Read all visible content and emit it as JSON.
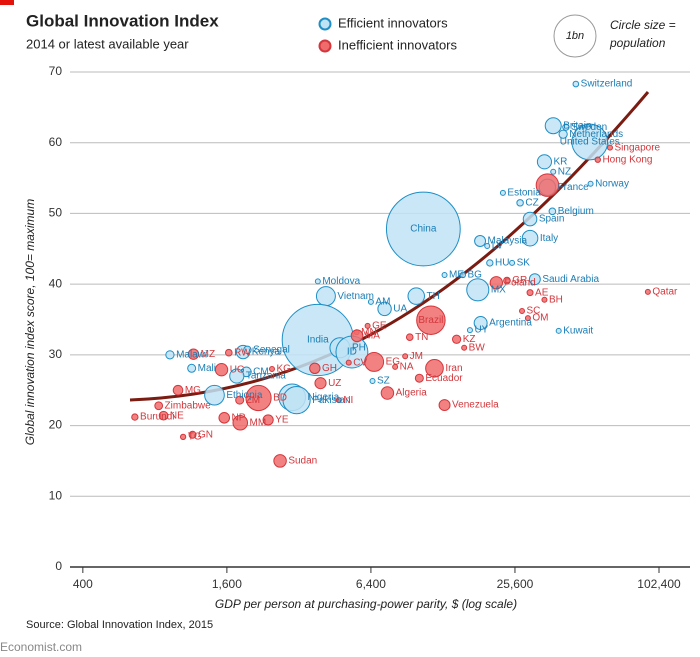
{
  "chart_data": {
    "type": "bubble",
    "title": "Global Innovation Index",
    "subtitle": "2014 or latest available year",
    "size_legend_label": "1bn",
    "size_legend_text": [
      "Circle size =",
      "population"
    ],
    "x_label": "GDP per person at purchasing-power parity, $ (log scale)",
    "y_label": "Global innovation index score, 100= maximum",
    "source": "Source: Global Innovation Index, 2015",
    "credit": "Economist.com",
    "x_log": true,
    "grid": true,
    "xlim": [
      270,
      138000
    ],
    "ylim": [
      0,
      70
    ],
    "xticks": [
      400,
      {
        "value": 1600,
        "label": "1,600"
      },
      {
        "value": 6400,
        "label": "6,400"
      },
      {
        "value": 25600,
        "label": "25,600"
      },
      {
        "value": 102400,
        "label": "102,400"
      }
    ],
    "yticks": [
      0,
      10,
      20,
      30,
      40,
      50,
      60,
      70
    ],
    "series": [
      {
        "name": "Efficient innovators",
        "color": "#bfe3f4",
        "stroke": "#1e8fc6",
        "text_color": "#1b7db5",
        "labels": [
          "Switzerland",
          "Britain",
          "Sweden",
          "Netherlands",
          "United States",
          "Norway",
          "KR",
          "NZ",
          "France",
          "Estonia",
          "CZ",
          "Spain",
          "Belgium",
          "China",
          "Malaysia",
          "Italy",
          "LV",
          "HU",
          "SK",
          "Moldova",
          "ME",
          "BG",
          "Saudi Arabia",
          "Vietnam",
          "TH",
          "MX",
          "AM",
          "UA",
          "UY",
          "Argentina",
          "Kuwait",
          "India",
          "PH",
          "ID",
          "Malawi",
          "Kenya",
          "Senegal",
          "Mali",
          "CM",
          "Tanzania",
          "Ethiopia",
          "Nigeria",
          "Pakistan",
          "SZ"
        ],
        "x": [
          46000,
          37000,
          41800,
          40700,
          52600,
          53000,
          34000,
          37000,
          35000,
          22800,
          26900,
          29600,
          36700,
          10600,
          18300,
          29600,
          19600,
          20100,
          24900,
          3840,
          13000,
          15500,
          31000,
          4150,
          9900,
          17900,
          6400,
          7300,
          16600,
          18400,
          39000,
          3840,
          4750,
          5330,
          925,
          1870,
          1950,
          1140,
          1930,
          1760,
          1420,
          3000,
          3130,
          6500
        ],
        "y": [
          68.3,
          62.4,
          62.2,
          61.2,
          60.1,
          54.2,
          57.3,
          55.9,
          53.7,
          52.9,
          51.5,
          49.2,
          50.3,
          47.8,
          46.1,
          46.5,
          45.4,
          43.0,
          43.0,
          40.4,
          41.3,
          41.3,
          40.7,
          38.3,
          38.3,
          39.2,
          37.5,
          36.5,
          33.5,
          34.5,
          33.4,
          32.1,
          31.0,
          30.4,
          30.0,
          30.4,
          30.7,
          28.1,
          27.6,
          27.0,
          24.3,
          24.0,
          23.6,
          26.3
        ],
        "size": [
          8,
          64,
          10,
          17,
          319,
          5,
          50,
          4.5,
          66,
          1.3,
          10.5,
          46,
          11,
          1360,
          30,
          61,
          2,
          10,
          5.4,
          3.6,
          0.6,
          7.2,
          30,
          90,
          68,
          122,
          3,
          45,
          3.4,
          42,
          3.8,
          1270,
          100,
          254,
          17,
          45,
          14,
          16,
          23,
          50,
          97,
          177,
          185,
          1.3
        ]
      },
      {
        "name": "Inefficient innovators",
        "color": "#f06b6b",
        "stroke": "#d3363b",
        "text_color": "#d2373c",
        "labels": [
          "Singapore",
          "Hong Kong",
          null,
          "Qatar",
          "GR",
          "Poland",
          "AE",
          "BH",
          "SC",
          "OM",
          "Brazil",
          "MN",
          "GE",
          "MA",
          "KZ",
          "BW",
          "TN",
          "JM",
          "NA",
          "Iran",
          "Ecuador",
          "Algeria",
          "Venezuela",
          "EG",
          "CV",
          "GH",
          "UZ",
          "NI",
          "KG",
          "BD",
          "ZM",
          "YE",
          "MM",
          "NP",
          "GN",
          "TG",
          "Sudan",
          "Zimbabwe",
          "Burundi",
          "NE",
          "MG",
          "UG",
          "RW",
          "MZ"
        ],
        "x": [
          63900,
          56800,
          35000,
          92000,
          23700,
          21400,
          29600,
          34000,
          27400,
          29000,
          11400,
          5580,
          6200,
          5600,
          14600,
          15700,
          9300,
          8900,
          8080,
          11800,
          10200,
          7500,
          13000,
          6600,
          5170,
          3730,
          3940,
          4700,
          2470,
          2170,
          1810,
          2380,
          1820,
          1560,
          1150,
          1050,
          2670,
          830,
          660,
          870,
          1000,
          1520,
          1630,
          1160
        ],
        "y": [
          59.3,
          57.6,
          54.0,
          38.9,
          40.5,
          40.2,
          38.8,
          37.8,
          36.2,
          35.2,
          34.9,
          33.2,
          34.1,
          32.7,
          32.2,
          31.0,
          32.5,
          29.8,
          28.3,
          28.1,
          26.7,
          24.6,
          22.9,
          29.0,
          28.9,
          28.1,
          26.0,
          23.6,
          28.0,
          23.9,
          23.6,
          20.8,
          20.4,
          21.1,
          18.7,
          18.4,
          15.0,
          22.8,
          21.2,
          21.4,
          25.0,
          27.9,
          30.3,
          30.1
        ],
        "size": [
          5.5,
          7.3,
          127,
          2.2,
          11,
          38,
          9,
          1.3,
          0.1,
          4,
          203,
          3,
          4.5,
          34,
          17,
          2,
          11,
          2.7,
          2.4,
          78,
          16,
          39,
          30,
          90,
          0.5,
          27,
          31,
          6,
          6,
          159,
          16,
          26,
          53,
          28,
          12,
          7,
          39,
          15,
          10,
          19,
          23,
          38,
          11,
          27
        ]
      }
    ]
  }
}
